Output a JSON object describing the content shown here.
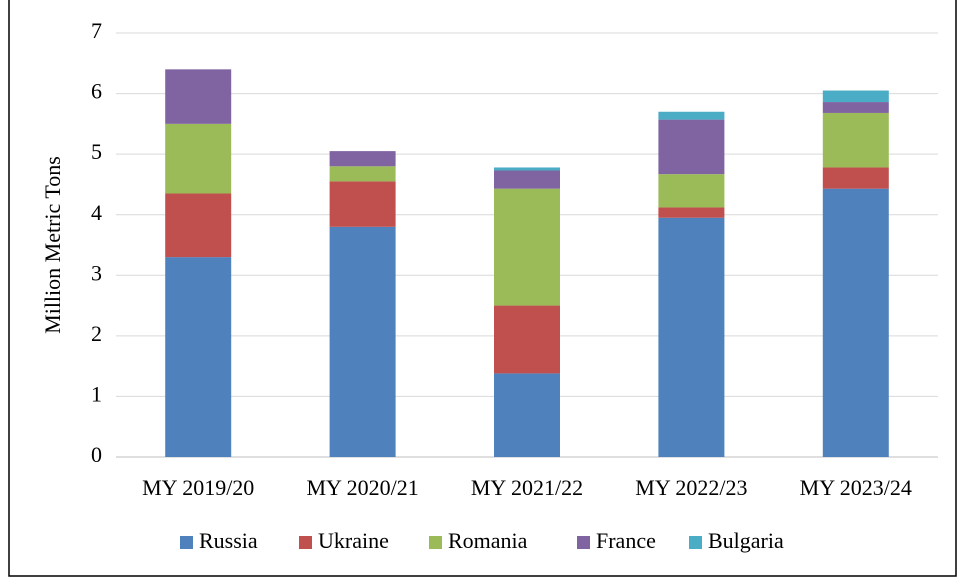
{
  "chart_data": {
    "type": "bar",
    "stacked": true,
    "y_label": "Million Metric Tons",
    "categories": [
      "MY 2019/20",
      "MY 2020/21",
      "MY 2021/22",
      "MY 2022/23",
      "MY 2023/24"
    ],
    "series": [
      {
        "name": "Russia",
        "color": "#4f81bd",
        "values": [
          3.3,
          3.8,
          1.38,
          3.95,
          4.43
        ]
      },
      {
        "name": "Ukraine",
        "color": "#c0504d",
        "values": [
          1.05,
          0.75,
          1.12,
          0.17,
          0.35
        ]
      },
      {
        "name": "Romania",
        "color": "#9bbb59",
        "values": [
          1.15,
          0.25,
          1.93,
          0.55,
          0.9
        ]
      },
      {
        "name": "France",
        "color": "#8064a2",
        "values": [
          0.9,
          0.25,
          0.3,
          0.9,
          0.18
        ]
      },
      {
        "name": "Bulgaria",
        "color": "#4bacc6",
        "values": [
          0,
          0,
          0.05,
          0.13,
          0.19
        ]
      }
    ],
    "ylim": [
      0,
      7
    ],
    "yticks": [
      0,
      1,
      2,
      3,
      4,
      5,
      6,
      7
    ],
    "grid": true,
    "legend": "bottom"
  }
}
